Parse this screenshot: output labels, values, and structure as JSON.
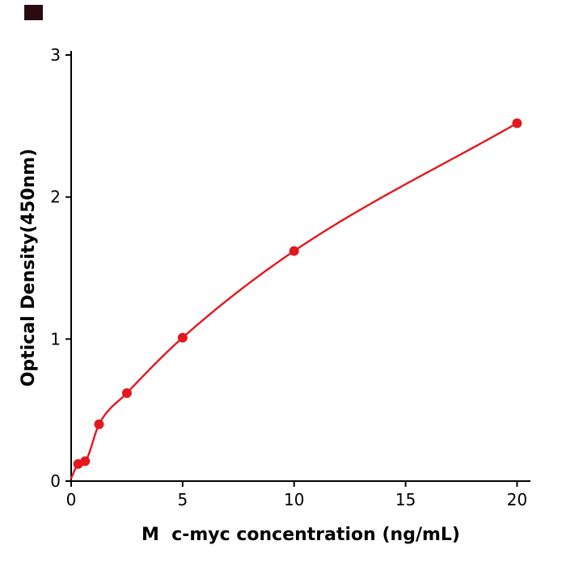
{
  "chart_data": {
    "type": "scatter",
    "title": "",
    "xlabel": "M  c-myc concentration (ng/mL)",
    "ylabel": "Optical Density(450nm)",
    "x": [
      0.313,
      0.625,
      1.25,
      2.5,
      5,
      10,
      20
    ],
    "y": [
      0.12,
      0.14,
      0.4,
      0.62,
      1.01,
      1.62,
      2.52
    ],
    "curve_start": {
      "x": 0,
      "y": 0.02
    },
    "xlim": [
      0,
      20.6
    ],
    "ylim": [
      0,
      3
    ],
    "xticks": [
      0,
      5,
      10,
      15,
      20
    ],
    "yticks": [
      0,
      1,
      2,
      3
    ],
    "grid": false,
    "legend": "none",
    "point_color": "#e3181e",
    "line_color": "#e3181e",
    "axis_color": "#000000"
  },
  "decorations": {
    "corner_mark_color": "#2a0b10"
  }
}
